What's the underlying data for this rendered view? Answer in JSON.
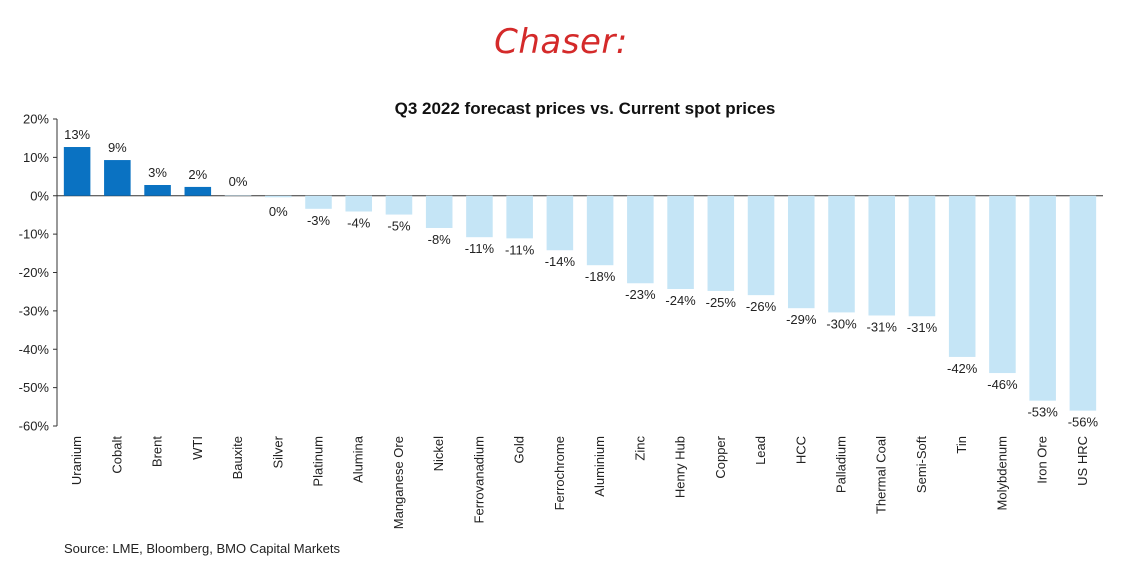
{
  "heading": "Chaser:",
  "source": "Source: LME, Bloomberg, BMO Capital Markets",
  "colors": {
    "positive": "#0a72c2",
    "negative": "#c5e5f6",
    "axis": "#333333",
    "text": "#222222"
  },
  "chart_data": {
    "type": "bar",
    "title": "Q3 2022 forecast prices vs. Current spot prices",
    "xlabel": "",
    "ylabel": "",
    "ylim": [
      -60,
      20
    ],
    "yticks": [
      20,
      10,
      0,
      -10,
      -20,
      -30,
      -40,
      -50,
      -60
    ],
    "ytick_labels": [
      "20%",
      "10%",
      "0%",
      "-10%",
      "-20%",
      "-30%",
      "-40%",
      "-50%",
      "-60%"
    ],
    "grid": false,
    "legend": "none",
    "categories": [
      "Uranium",
      "Cobalt",
      "Brent",
      "WTI",
      "Bauxite",
      "Silver",
      "Platinum",
      "Alumina",
      "Manganese Ore",
      "Nickel",
      "Ferrovanadium",
      "Gold",
      "Ferrochrome",
      "Aluminium",
      "Zinc",
      "Henry Hub",
      "Copper",
      "Lead",
      "HCC",
      "Palladium",
      "Thermal Coal",
      "Semi-Soft",
      "Tin",
      "Molybdenum",
      "Iron Ore",
      "US HRC"
    ],
    "values": [
      12.7,
      9.3,
      2.8,
      2.3,
      0.1,
      -0.4,
      -3.4,
      -4.1,
      -4.9,
      -8.4,
      -10.8,
      -11.1,
      -14.2,
      -18.1,
      -22.8,
      -24.3,
      -24.8,
      -25.9,
      -29.3,
      -30.4,
      -31.2,
      -31.4,
      -42.0,
      -46.2,
      -53.4,
      -56.0
    ],
    "labels": [
      "13%",
      "9%",
      "3%",
      "2%",
      "0%",
      "0%",
      "-3%",
      "-4%",
      "-5%",
      "-8%",
      "-11%",
      "-11%",
      "-14%",
      "-18%",
      "-23%",
      "-24%",
      "-25%",
      "-26%",
      "-29%",
      "-30%",
      "-31%",
      "-31%",
      "-42%",
      "-46%",
      "-53%",
      "-56%"
    ],
    "highlighted_count": 4
  }
}
